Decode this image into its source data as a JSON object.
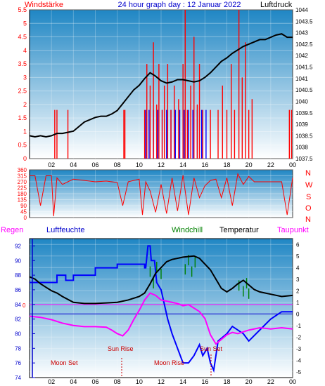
{
  "colors": {
    "bg_top": "#1f86c4",
    "bg_bottom": "#ffffff",
    "pressure": "#000000",
    "wind_speed": "#ff0000",
    "wind_gust": "#0000ff",
    "wind_dir": "#ff0000",
    "humidity": "#0000ff",
    "windchill": "#008000",
    "temperature": "#000000",
    "dewpoint": "#ff00ff",
    "annotation": "#cc0000",
    "left_axis": "#ff0000",
    "hum_axis": "#0000cc"
  },
  "header": {
    "left_label": "Windstärke",
    "title": "24 hour graph day : 12 Januar 2022",
    "right_label": "Luftdruck"
  },
  "legend": {
    "regen": "Regen",
    "luftfeuchte": "Luftfeuchte",
    "windchill": "Windchill",
    "temperatur": "Temperatur",
    "taupunkt": "Taupunkt"
  },
  "compass": [
    "N",
    "W",
    "S",
    "O",
    "N"
  ],
  "annotations": {
    "moon_set": "Moon Set",
    "sun_rise": "Sun Rise",
    "moon_rise": "Moon Rise",
    "sun_set": "Sun Set"
  },
  "chart_data": [
    {
      "type": "bar",
      "name": "wind",
      "x_hours": [
        0,
        24
      ],
      "x_ticks": [
        "02",
        "04",
        "06",
        "08",
        "10",
        "12",
        "14",
        "16",
        "18",
        "20",
        "22",
        "00"
      ],
      "left_axis": {
        "ylim": [
          0,
          5.5
        ],
        "ticks": [
          "0",
          "0.5",
          "1",
          "1.5",
          "2",
          "2.5",
          "3",
          "3.5",
          "4",
          "4.5",
          "5",
          "5.5"
        ]
      },
      "right_axis": {
        "ylim": [
          1037.5,
          1044
        ],
        "ticks": [
          "1037.5",
          "1038",
          "1038.5",
          "1039",
          "1039.5",
          "1040",
          "1040.5",
          "1041",
          "1041.5",
          "1042",
          "1042.5",
          "1043",
          "1043.5",
          "1044"
        ]
      },
      "wind_speed": [
        [
          2.3,
          1.8
        ],
        [
          2.5,
          1.8
        ],
        [
          3.5,
          1.8
        ],
        [
          8.6,
          1.8
        ],
        [
          8.7,
          1.8
        ],
        [
          10.5,
          1.8
        ],
        [
          10.7,
          3.5
        ],
        [
          11.0,
          2.7
        ],
        [
          11.3,
          4.3
        ],
        [
          11.6,
          2.0
        ],
        [
          11.8,
          3.5
        ],
        [
          12.1,
          1.8
        ],
        [
          12.3,
          2.7
        ],
        [
          12.6,
          3.5
        ],
        [
          12.9,
          1.8
        ],
        [
          13.2,
          2.7
        ],
        [
          13.6,
          2.2
        ],
        [
          14.0,
          3.5
        ],
        [
          14.2,
          5.5
        ],
        [
          14.4,
          1.8
        ],
        [
          14.7,
          2.7
        ],
        [
          15.0,
          4.5
        ],
        [
          15.3,
          2.0
        ],
        [
          15.5,
          3.5
        ],
        [
          15.8,
          1.8
        ],
        [
          16.5,
          1.8
        ],
        [
          17.2,
          1.8
        ],
        [
          17.6,
          2.7
        ],
        [
          18.0,
          1.8
        ],
        [
          18.4,
          3.5
        ],
        [
          18.7,
          1.8
        ],
        [
          19.1,
          5.5
        ],
        [
          19.4,
          3.0
        ],
        [
          19.7,
          4.3
        ],
        [
          20.0,
          1.8
        ],
        [
          20.3,
          2.2
        ],
        [
          23.7,
          1.8
        ],
        [
          23.9,
          1.8
        ]
      ],
      "wind_gust": [
        [
          10.6,
          1.8
        ],
        [
          10.9,
          1.8
        ],
        [
          11.3,
          1.8
        ],
        [
          11.7,
          1.8
        ],
        [
          12.1,
          1.8
        ],
        [
          12.5,
          1.8
        ],
        [
          12.9,
          1.8
        ],
        [
          13.3,
          1.8
        ],
        [
          13.7,
          1.8
        ],
        [
          14.1,
          1.8
        ],
        [
          14.5,
          1.8
        ],
        [
          14.9,
          1.8
        ],
        [
          15.3,
          1.8
        ],
        [
          15.7,
          1.8
        ],
        [
          16.1,
          1.8
        ]
      ],
      "pressure": [
        [
          0,
          1038.5
        ],
        [
          0.5,
          1038.45
        ],
        [
          1,
          1038.5
        ],
        [
          1.5,
          1038.45
        ],
        [
          2,
          1038.5
        ],
        [
          2.5,
          1038.6
        ],
        [
          3,
          1038.6
        ],
        [
          3.5,
          1038.65
        ],
        [
          4,
          1038.7
        ],
        [
          4.5,
          1038.9
        ],
        [
          5,
          1039.1
        ],
        [
          5.5,
          1039.2
        ],
        [
          6,
          1039.3
        ],
        [
          6.5,
          1039.35
        ],
        [
          7,
          1039.35
        ],
        [
          7.5,
          1039.45
        ],
        [
          8,
          1039.6
        ],
        [
          8.5,
          1039.9
        ],
        [
          9,
          1040.2
        ],
        [
          9.5,
          1040.5
        ],
        [
          10,
          1040.7
        ],
        [
          10.5,
          1041.0
        ],
        [
          11,
          1041.25
        ],
        [
          11.5,
          1041.1
        ],
        [
          12,
          1040.9
        ],
        [
          12.5,
          1040.8
        ],
        [
          13,
          1040.85
        ],
        [
          13.5,
          1040.95
        ],
        [
          14,
          1040.95
        ],
        [
          14.5,
          1040.9
        ],
        [
          15,
          1040.85
        ],
        [
          15.5,
          1040.9
        ],
        [
          16,
          1041.05
        ],
        [
          16.5,
          1041.25
        ],
        [
          17,
          1041.5
        ],
        [
          17.5,
          1041.75
        ],
        [
          18,
          1041.9
        ],
        [
          18.5,
          1042.1
        ],
        [
          19,
          1042.25
        ],
        [
          19.5,
          1042.4
        ],
        [
          20,
          1042.5
        ],
        [
          20.5,
          1042.6
        ],
        [
          21,
          1042.7
        ],
        [
          21.5,
          1042.7
        ],
        [
          22,
          1042.8
        ],
        [
          22.5,
          1042.9
        ],
        [
          23,
          1042.95
        ],
        [
          23.5,
          1042.8
        ],
        [
          24,
          1042.8
        ]
      ]
    },
    {
      "type": "line",
      "name": "wind_direction",
      "x_hours": [
        0,
        24
      ],
      "x_ticks": [
        "02",
        "04",
        "06",
        "08",
        "10",
        "12",
        "14",
        "16",
        "18",
        "20",
        "22",
        "00"
      ],
      "ylim": [
        0,
        360
      ],
      "y_ticks": [
        "0",
        "45",
        "90",
        "135",
        "180",
        "225",
        "270",
        "315",
        "360"
      ],
      "points": [
        [
          0,
          315
        ],
        [
          0.5,
          315
        ],
        [
          1,
          90
        ],
        [
          1.5,
          315
        ],
        [
          2,
          315
        ],
        [
          2.2,
          10
        ],
        [
          2.5,
          300
        ],
        [
          3.0,
          250
        ],
        [
          3.5,
          270
        ],
        [
          4,
          290
        ],
        [
          5,
          280
        ],
        [
          6,
          270
        ],
        [
          7,
          275
        ],
        [
          8,
          265
        ],
        [
          8.5,
          90
        ],
        [
          9,
          270
        ],
        [
          10,
          290
        ],
        [
          10.3,
          20
        ],
        [
          10.6,
          270
        ],
        [
          11,
          200
        ],
        [
          11.5,
          40
        ],
        [
          12,
          250
        ],
        [
          12.5,
          30
        ],
        [
          13,
          300
        ],
        [
          13.5,
          50
        ],
        [
          14,
          320
        ],
        [
          14.5,
          20
        ],
        [
          15,
          300
        ],
        [
          15.5,
          150
        ],
        [
          16,
          240
        ],
        [
          16.5,
          280
        ],
        [
          17,
          290
        ],
        [
          17.5,
          150
        ],
        [
          18,
          300
        ],
        [
          18.5,
          90
        ],
        [
          19,
          330
        ],
        [
          19.5,
          250
        ],
        [
          20,
          310
        ],
        [
          20.5,
          270
        ],
        [
          21,
          270
        ],
        [
          22,
          270
        ],
        [
          23,
          270
        ],
        [
          23.5,
          20
        ],
        [
          24,
          300
        ]
      ]
    },
    {
      "type": "line",
      "name": "temperature_humidity",
      "x_hours": [
        0,
        24
      ],
      "x_ticks": [
        "02",
        "04",
        "06",
        "08",
        "10",
        "12",
        "14",
        "16",
        "18",
        "20",
        "22",
        "00"
      ],
      "humidity_axis": {
        "ylim": [
          74,
          93
        ],
        "ticks": [
          "74",
          "76",
          "78",
          "80",
          "82",
          "84",
          "86",
          "88",
          "90",
          "92"
        ]
      },
      "temp_axis": {
        "ylim": [
          -5.5,
          6.5
        ],
        "ticks": [
          "-5",
          "-4",
          "-3",
          "-2",
          "-1",
          "0",
          "1",
          "2",
          "3",
          "4",
          "5",
          "6"
        ]
      },
      "zero_label": "0",
      "humidity": [
        [
          0,
          87
        ],
        [
          1.5,
          87
        ],
        [
          2.5,
          87
        ],
        [
          2.5,
          88
        ],
        [
          3.3,
          88
        ],
        [
          3.3,
          87.3
        ],
        [
          4,
          87.3
        ],
        [
          4,
          88
        ],
        [
          6,
          88
        ],
        [
          6,
          89
        ],
        [
          8,
          89
        ],
        [
          8,
          89.5
        ],
        [
          10.5,
          89.5
        ],
        [
          10.5,
          89
        ],
        [
          10.6,
          89
        ],
        [
          10.8,
          92
        ],
        [
          11,
          92
        ],
        [
          11.1,
          90
        ],
        [
          11.4,
          90
        ],
        [
          11.6,
          87
        ],
        [
          12,
          86
        ],
        [
          12.3,
          84
        ],
        [
          12.6,
          82
        ],
        [
          13.0,
          80
        ],
        [
          13.5,
          78
        ],
        [
          14.0,
          76
        ],
        [
          14.5,
          76
        ],
        [
          15.0,
          77
        ],
        [
          15.5,
          78.5
        ],
        [
          15.8,
          77
        ],
        [
          16.2,
          78
        ],
        [
          16.5,
          76
        ],
        [
          16.8,
          75
        ],
        [
          17.2,
          79
        ],
        [
          18.0,
          80
        ],
        [
          18.5,
          81
        ],
        [
          19.5,
          80
        ],
        [
          20.0,
          79
        ],
        [
          21.0,
          80.5
        ],
        [
          22.0,
          82
        ],
        [
          23.0,
          83
        ],
        [
          24,
          83
        ]
      ],
      "windchill": [
        [
          11.0,
          3.2
        ],
        [
          11.3,
          2.2
        ],
        [
          11.6,
          3.6
        ],
        [
          12.0,
          3.0
        ],
        [
          14.2,
          3.4
        ],
        [
          14.5,
          4.2
        ],
        [
          14.8,
          3.2
        ],
        [
          15.1,
          4.0
        ],
        [
          19.1,
          2.0
        ],
        [
          19.5,
          1.5
        ],
        [
          19.8,
          2.2
        ],
        [
          20.0,
          1.3
        ]
      ],
      "temperature": [
        [
          0,
          3.2
        ],
        [
          0.5,
          3.0
        ],
        [
          1,
          2.6
        ],
        [
          1.5,
          2.3
        ],
        [
          2,
          2.0
        ],
        [
          2.5,
          1.8
        ],
        [
          3,
          1.5
        ],
        [
          4,
          1.0
        ],
        [
          5,
          0.9
        ],
        [
          6,
          0.9
        ],
        [
          7,
          0.95
        ],
        [
          8,
          1.0
        ],
        [
          9,
          1.2
        ],
        [
          10,
          1.5
        ],
        [
          10.5,
          1.8
        ],
        [
          11,
          2.6
        ],
        [
          11.5,
          3.5
        ],
        [
          12,
          4.0
        ],
        [
          12.5,
          4.5
        ],
        [
          13,
          4.7
        ],
        [
          13.5,
          4.8
        ],
        [
          14,
          4.9
        ],
        [
          15,
          5.0
        ],
        [
          15.5,
          4.8
        ],
        [
          16,
          4.3
        ],
        [
          16.5,
          3.8
        ],
        [
          17,
          3.0
        ],
        [
          17.5,
          2.2
        ],
        [
          18,
          1.9
        ],
        [
          18.5,
          2.2
        ],
        [
          19,
          2.6
        ],
        [
          19.5,
          2.9
        ],
        [
          20,
          2.5
        ],
        [
          20.5,
          2.1
        ],
        [
          21,
          1.9
        ],
        [
          22,
          1.7
        ],
        [
          23,
          1.5
        ],
        [
          24,
          1.6
        ]
      ],
      "dewpoint": [
        [
          0,
          -0.2
        ],
        [
          1,
          -0.3
        ],
        [
          2,
          -0.5
        ],
        [
          3,
          -0.8
        ],
        [
          4,
          -1.0
        ],
        [
          5,
          -1.1
        ],
        [
          6,
          -1.1
        ],
        [
          7,
          -1.15
        ],
        [
          7.5,
          -1.4
        ],
        [
          8,
          -1.7
        ],
        [
          8.5,
          -1.9
        ],
        [
          9,
          -1.4
        ],
        [
          9.5,
          -0.5
        ],
        [
          10,
          0.3
        ],
        [
          10.5,
          1.2
        ],
        [
          11,
          1.8
        ],
        [
          11.5,
          1.6
        ],
        [
          12,
          1.2
        ],
        [
          12.5,
          1.1
        ],
        [
          13,
          1.0
        ],
        [
          13.5,
          0.9
        ],
        [
          14,
          0.7
        ],
        [
          14.5,
          0.8
        ],
        [
          15,
          0.5
        ],
        [
          15.5,
          0.2
        ],
        [
          16,
          -0.4
        ],
        [
          16.5,
          -1.8
        ],
        [
          17,
          -2.6
        ],
        [
          17.5,
          -2.2
        ],
        [
          18,
          -1.8
        ],
        [
          18.5,
          -1.6
        ],
        [
          19,
          -1.7
        ],
        [
          20,
          -1.4
        ],
        [
          21,
          -1.2
        ],
        [
          22,
          -1.3
        ],
        [
          23,
          -1.2
        ],
        [
          24,
          -1.3
        ]
      ]
    }
  ]
}
